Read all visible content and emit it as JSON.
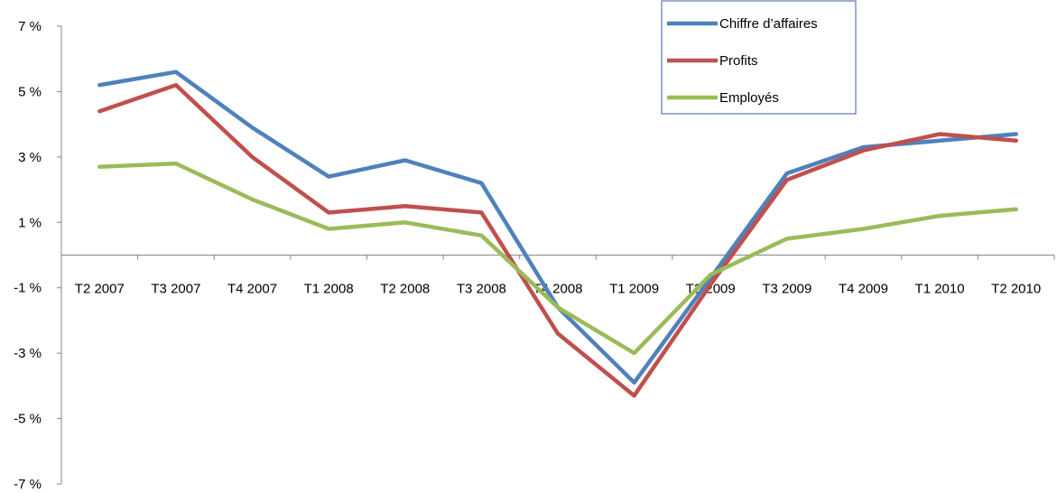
{
  "chart_data": {
    "type": "line",
    "title": "",
    "xlabel": "",
    "ylabel": "",
    "categories": [
      "T2 2007",
      "T3 2007",
      "T4 2007",
      "T1 2008",
      "T2 2008",
      "T3 2008",
      "T4 2008",
      "T1 2009",
      "T2 2009",
      "T3 2009",
      "T4 2009",
      "T1 2010",
      "T2 2010"
    ],
    "ylim": [
      -7,
      7
    ],
    "yticks": [
      7,
      5,
      3,
      1,
      -1,
      -3,
      -5,
      -7
    ],
    "ytick_labels": [
      "7 %",
      "5 %",
      "3 %",
      "1 %",
      "-1 %",
      "-3 %",
      "-5 %",
      "-7 %"
    ],
    "grid": false,
    "legend_position": "top-right",
    "series": [
      {
        "name": "Chiffre d’affaires",
        "color": "#4F81BD",
        "values": [
          5.2,
          5.6,
          3.9,
          2.4,
          2.9,
          2.2,
          -1.6,
          -3.9,
          -0.7,
          2.5,
          3.3,
          3.5,
          3.7
        ]
      },
      {
        "name": "Profits",
        "color": "#C0504D",
        "values": [
          4.4,
          5.2,
          3.0,
          1.3,
          1.5,
          1.3,
          -2.4,
          -4.3,
          -0.9,
          2.3,
          3.2,
          3.7,
          3.5
        ]
      },
      {
        "name": "Employés",
        "color": "#9BBB59",
        "values": [
          2.7,
          2.8,
          1.7,
          0.8,
          1.0,
          0.6,
          -1.6,
          -3.0,
          -0.6,
          0.5,
          0.8,
          1.2,
          1.4
        ]
      }
    ]
  }
}
